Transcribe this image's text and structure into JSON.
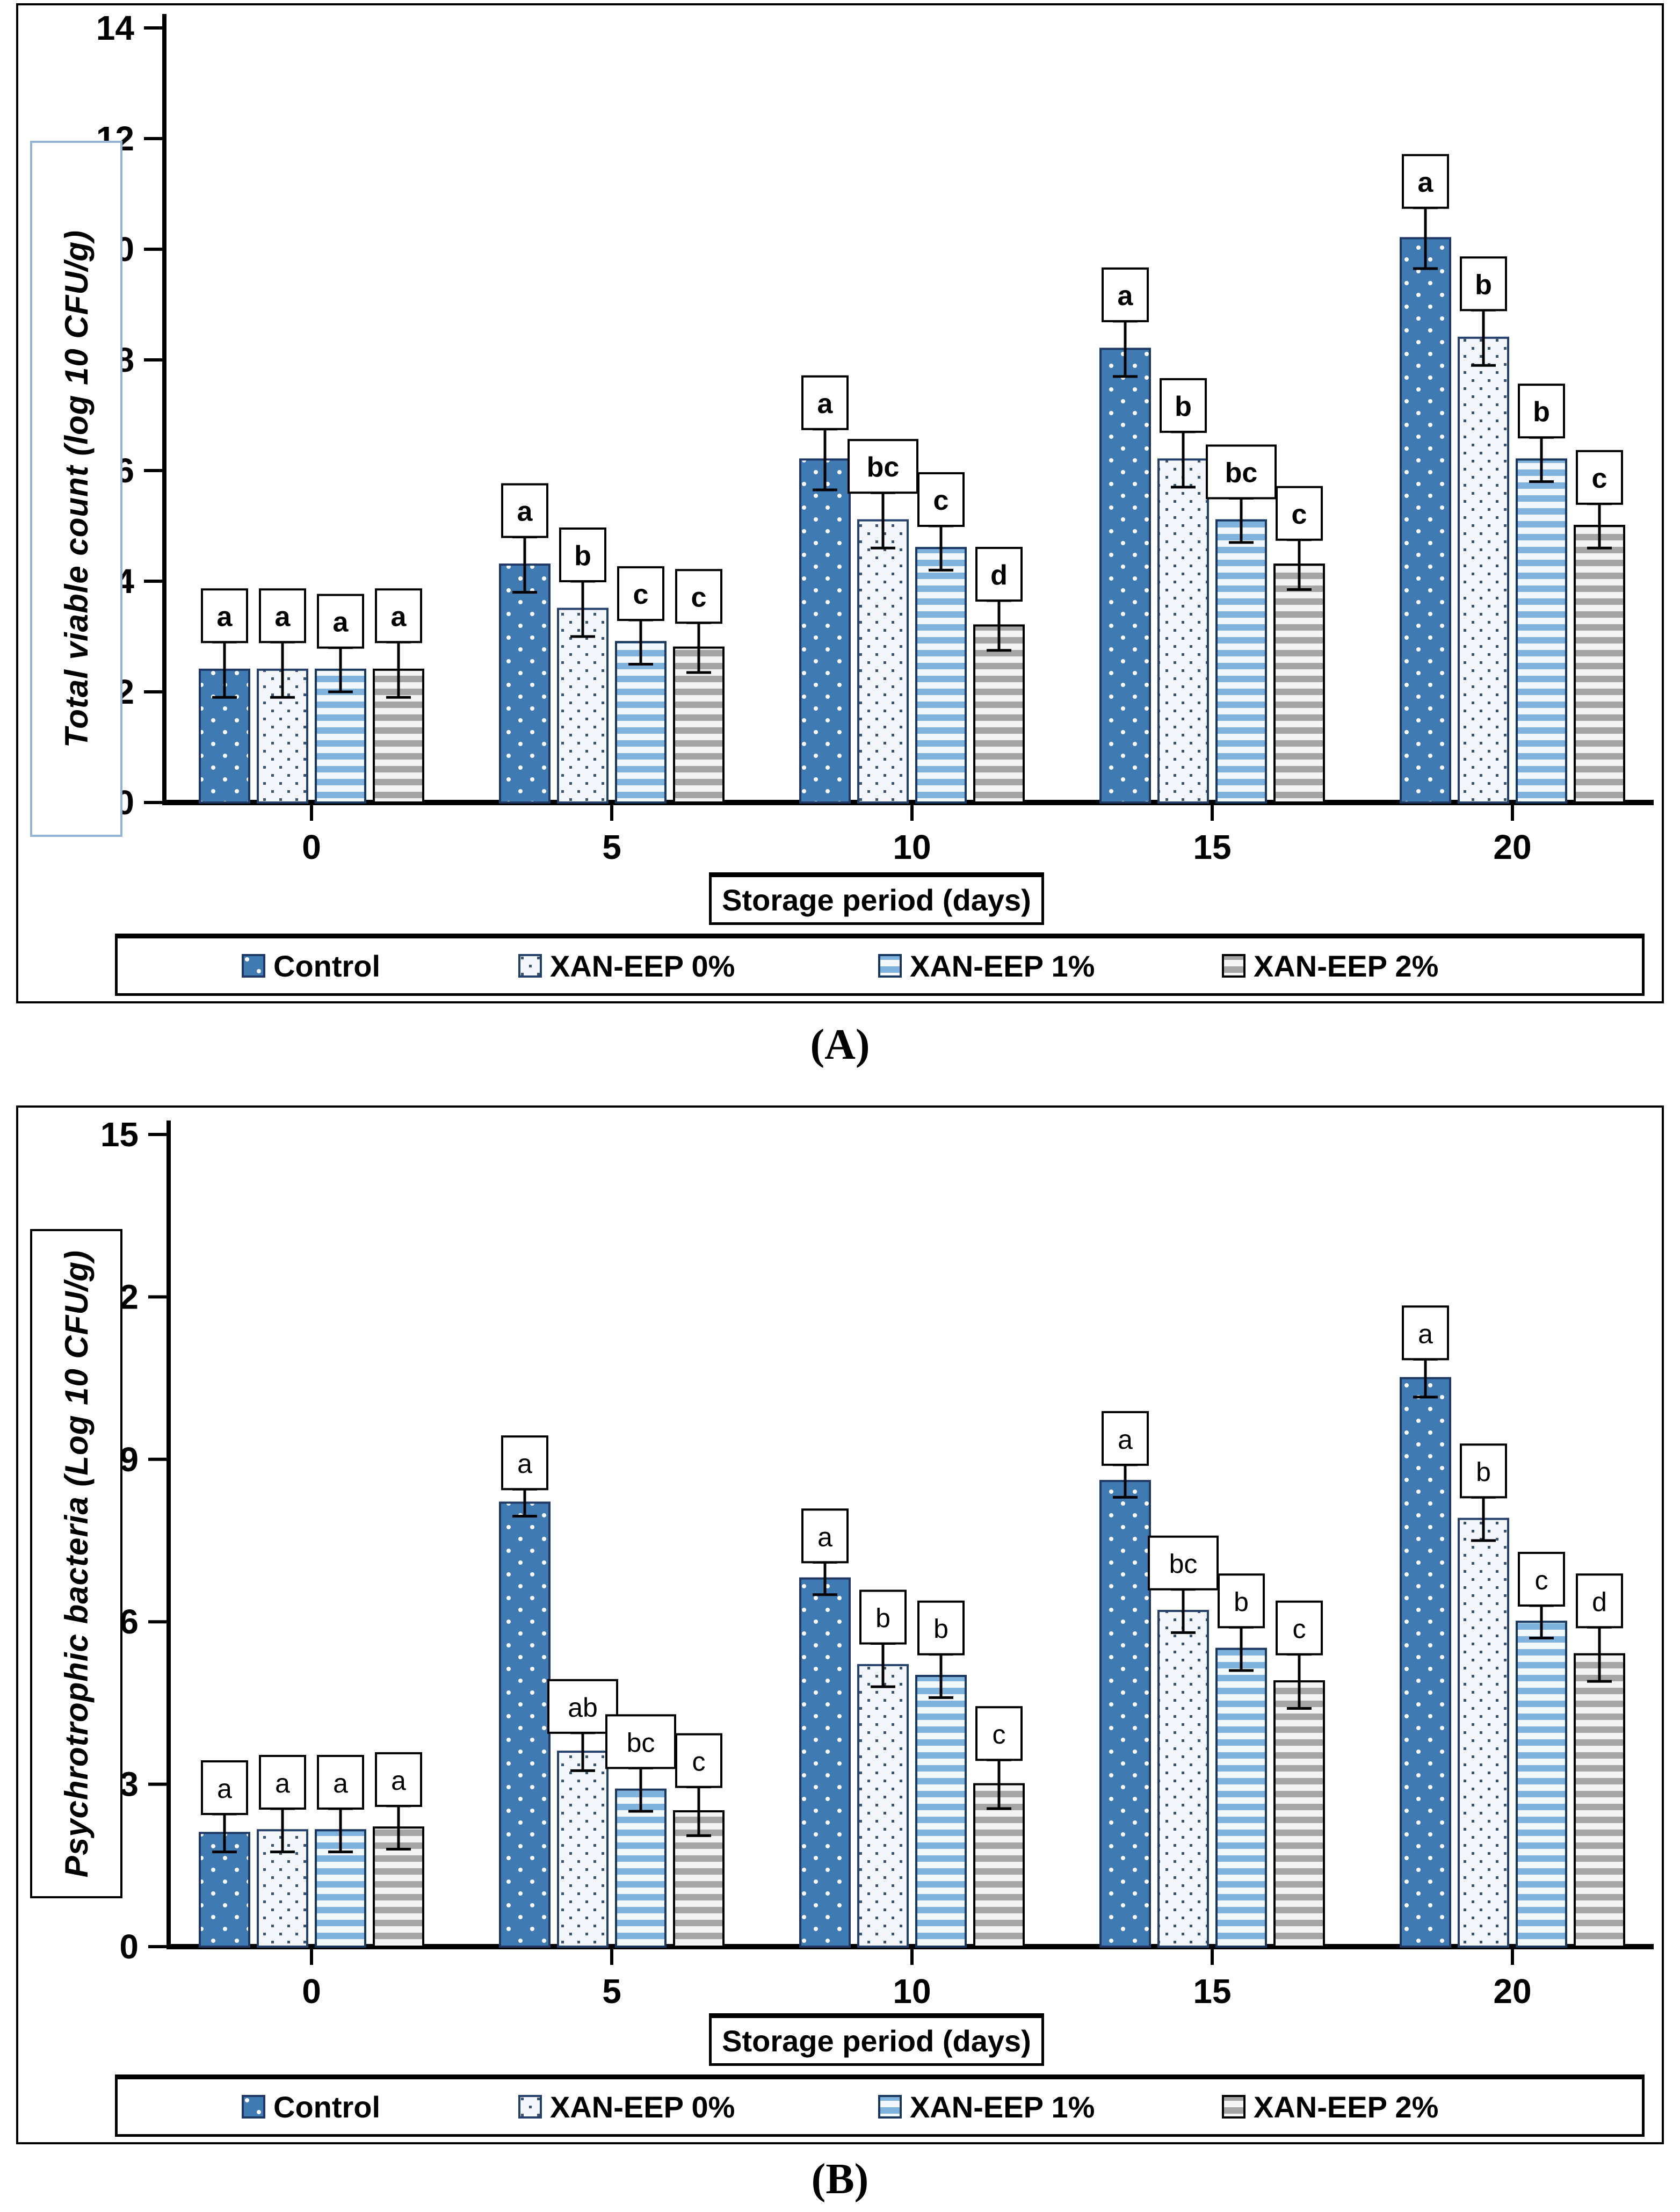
{
  "figure": {
    "panel_a_caption": "(A)",
    "panel_b_caption": "(B)",
    "x_axis_label": "Storage period (days)",
    "panel_a_ylabel_border_color": "#95B3D7",
    "panel_b_ylabel_border_color": "#000000",
    "axis_color": "#000000",
    "letter_box_border_color": "#000000"
  },
  "chart_data": [
    {
      "type": "bar",
      "panel": "A",
      "title": "(A)",
      "ylabel": "Total viable count (log 10 CFU/g)",
      "xlabel": "Storage period (days)",
      "categories": [
        "0",
        "5",
        "10",
        "15",
        "20"
      ],
      "ylim": [
        0,
        14
      ],
      "ytick_step": 2,
      "grid": false,
      "legend_position": "bottom",
      "series": [
        {
          "name": "Control",
          "style": {
            "fill_type": "dots",
            "color1": "#3F7AB3",
            "color2": "#FFFFFF",
            "stroke": "#1F3864"
          },
          "values": [
            2.4,
            4.3,
            6.2,
            8.2,
            10.2
          ],
          "errors": [
            0.5,
            0.5,
            0.55,
            0.5,
            0.55
          ],
          "letters": [
            "a",
            "a",
            "a",
            "a",
            "a"
          ]
        },
        {
          "name": "XAN-EEP 0%",
          "style": {
            "fill_type": "fine-dots",
            "color1": "#F3F7FC",
            "color2": "#3D5376",
            "stroke": "#24406B"
          },
          "values": [
            2.4,
            3.5,
            5.1,
            6.2,
            8.4
          ],
          "errors": [
            0.5,
            0.5,
            0.5,
            0.5,
            0.5
          ],
          "letters": [
            "a",
            "b",
            "bc",
            "b",
            "b"
          ]
        },
        {
          "name": "XAN-EEP 1%",
          "style": {
            "fill_type": "hstripes",
            "color1": "#7FB2DC",
            "color2": "#F2F8FD",
            "stroke": "#17375E"
          },
          "values": [
            2.4,
            2.9,
            4.6,
            5.1,
            6.2
          ],
          "errors": [
            0.4,
            0.4,
            0.4,
            0.4,
            0.4
          ],
          "letters": [
            "a",
            "c",
            "c",
            "bc",
            "b"
          ]
        },
        {
          "name": "XAN-EEP 2%",
          "style": {
            "fill_type": "hstripes",
            "color1": "#A5A5A5",
            "color2": "#F4F4F4",
            "stroke": "#000000"
          },
          "values": [
            2.4,
            2.8,
            3.2,
            4.3,
            5.0
          ],
          "errors": [
            0.5,
            0.45,
            0.45,
            0.45,
            0.4
          ],
          "letters": [
            "a",
            "c",
            "d",
            "c",
            "c"
          ]
        }
      ]
    },
    {
      "type": "bar",
      "panel": "B",
      "title": "(B)",
      "ylabel": "Psychrotrophic bacteria (Log 10 CFU/g)",
      "xlabel": "Storage period (days)",
      "categories": [
        "0",
        "5",
        "10",
        "15",
        "20"
      ],
      "ylim": [
        0,
        15
      ],
      "ytick_step": 3,
      "grid": false,
      "legend_position": "bottom",
      "series": [
        {
          "name": "Control",
          "style": {
            "fill_type": "dots",
            "color1": "#3F7AB3",
            "color2": "#FFFFFF",
            "stroke": "#1F3864"
          },
          "values": [
            2.1,
            8.2,
            6.8,
            8.6,
            10.5
          ],
          "errors": [
            0.35,
            0.25,
            0.3,
            0.3,
            0.35
          ],
          "letters": [
            "a",
            "a",
            "a",
            "a",
            "a"
          ]
        },
        {
          "name": "XAN-EEP 0%",
          "style": {
            "fill_type": "fine-dots",
            "color1": "#F3F7FC",
            "color2": "#3D5376",
            "stroke": "#24406B"
          },
          "values": [
            2.15,
            3.6,
            5.2,
            6.2,
            7.9
          ],
          "errors": [
            0.4,
            0.35,
            0.4,
            0.4,
            0.4
          ],
          "letters": [
            "a",
            "ab",
            "b",
            "bc",
            "b"
          ]
        },
        {
          "name": "XAN-EEP 1%",
          "style": {
            "fill_type": "hstripes",
            "color1": "#7FB2DC",
            "color2": "#F2F8FD",
            "stroke": "#17375E"
          },
          "values": [
            2.15,
            2.9,
            5.0,
            5.5,
            6.0
          ],
          "errors": [
            0.4,
            0.4,
            0.4,
            0.4,
            0.3
          ],
          "letters": [
            "a",
            "bc",
            "b",
            "b",
            "c"
          ]
        },
        {
          "name": "XAN-EEP 2%",
          "style": {
            "fill_type": "hstripes",
            "color1": "#A5A5A5",
            "color2": "#F4F4F4",
            "stroke": "#000000"
          },
          "values": [
            2.2,
            2.5,
            3.0,
            4.9,
            5.4
          ],
          "errors": [
            0.4,
            0.45,
            0.45,
            0.5,
            0.5
          ],
          "letters": [
            "a",
            "c",
            "c",
            "c",
            "d"
          ]
        }
      ]
    }
  ]
}
